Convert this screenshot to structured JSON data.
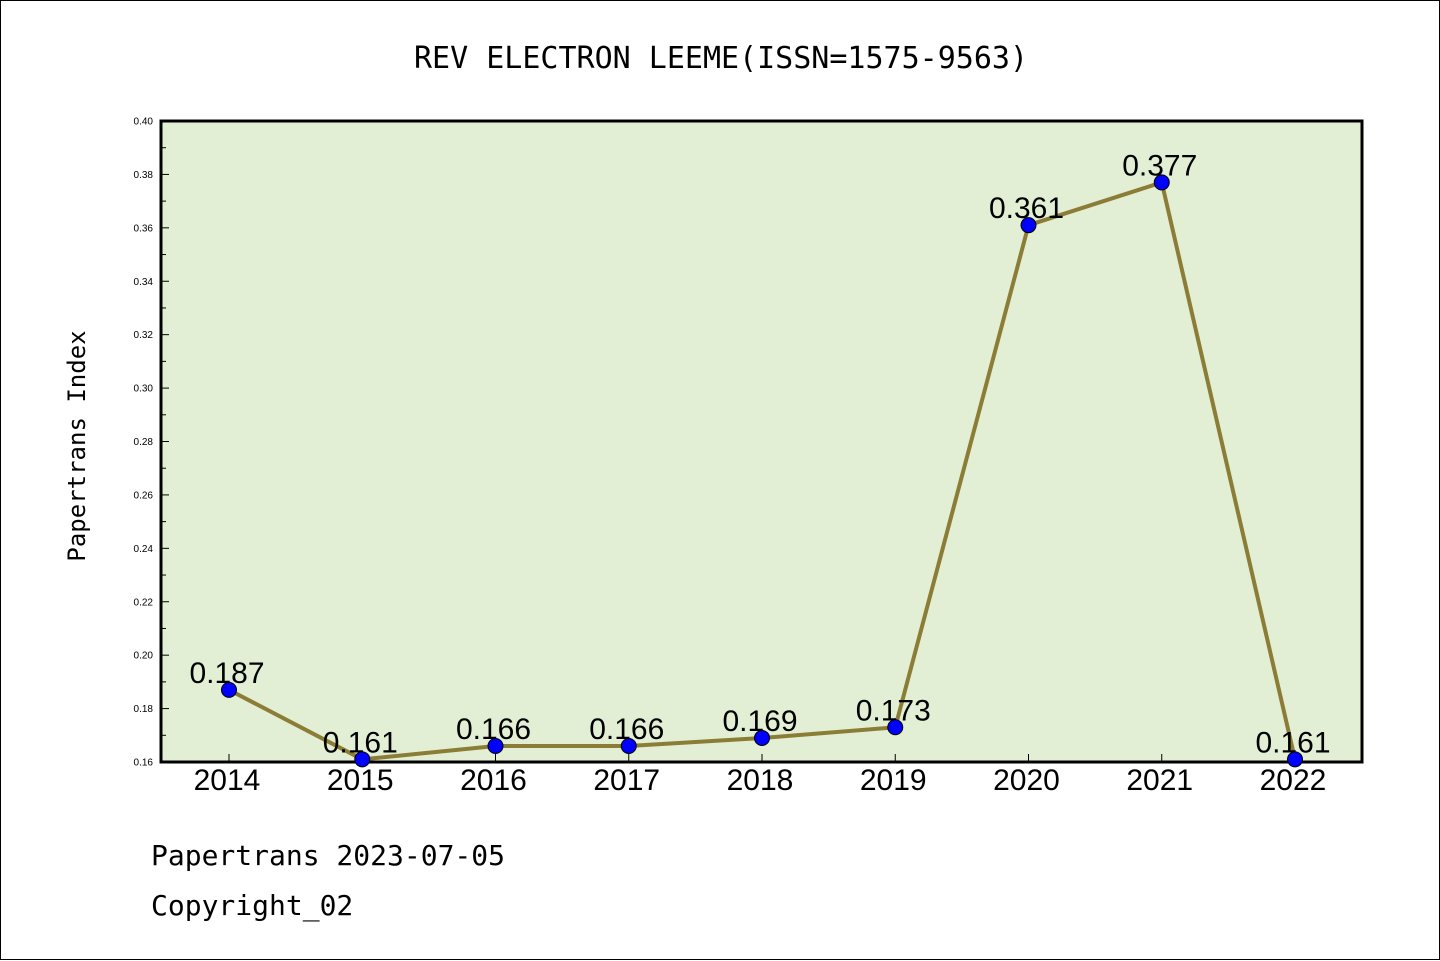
{
  "chart_data": {
    "type": "line",
    "title": "REV ELECTRON LEEME(ISSN=1575-9563)",
    "ylabel": "Papertrans Index",
    "xlabel": "",
    "categories": [
      "2014",
      "2015",
      "2016",
      "2017",
      "2018",
      "2019",
      "2020",
      "2021",
      "2022"
    ],
    "values": [
      0.187,
      0.161,
      0.166,
      0.166,
      0.169,
      0.173,
      0.361,
      0.377,
      0.161
    ],
    "value_labels": [
      "0.187",
      "0.161",
      "0.166",
      "0.166",
      "0.169",
      "0.173",
      "0.361",
      "0.377",
      "0.161"
    ],
    "ylim": [
      0.16,
      0.4
    ],
    "yticks": [
      "0.16",
      "0.18",
      "0.20",
      "0.22",
      "0.24",
      "0.26",
      "0.28",
      "0.30",
      "0.32",
      "0.34",
      "0.36",
      "0.38",
      "0.40"
    ],
    "grid": false,
    "legend": "none",
    "colors": {
      "plot_background": "#e2efd4",
      "line": "#8b7d35",
      "marker": "#0000ff"
    }
  },
  "footer": {
    "line1": "Papertrans 2023-07-05",
    "line2": "Copyright_02"
  }
}
